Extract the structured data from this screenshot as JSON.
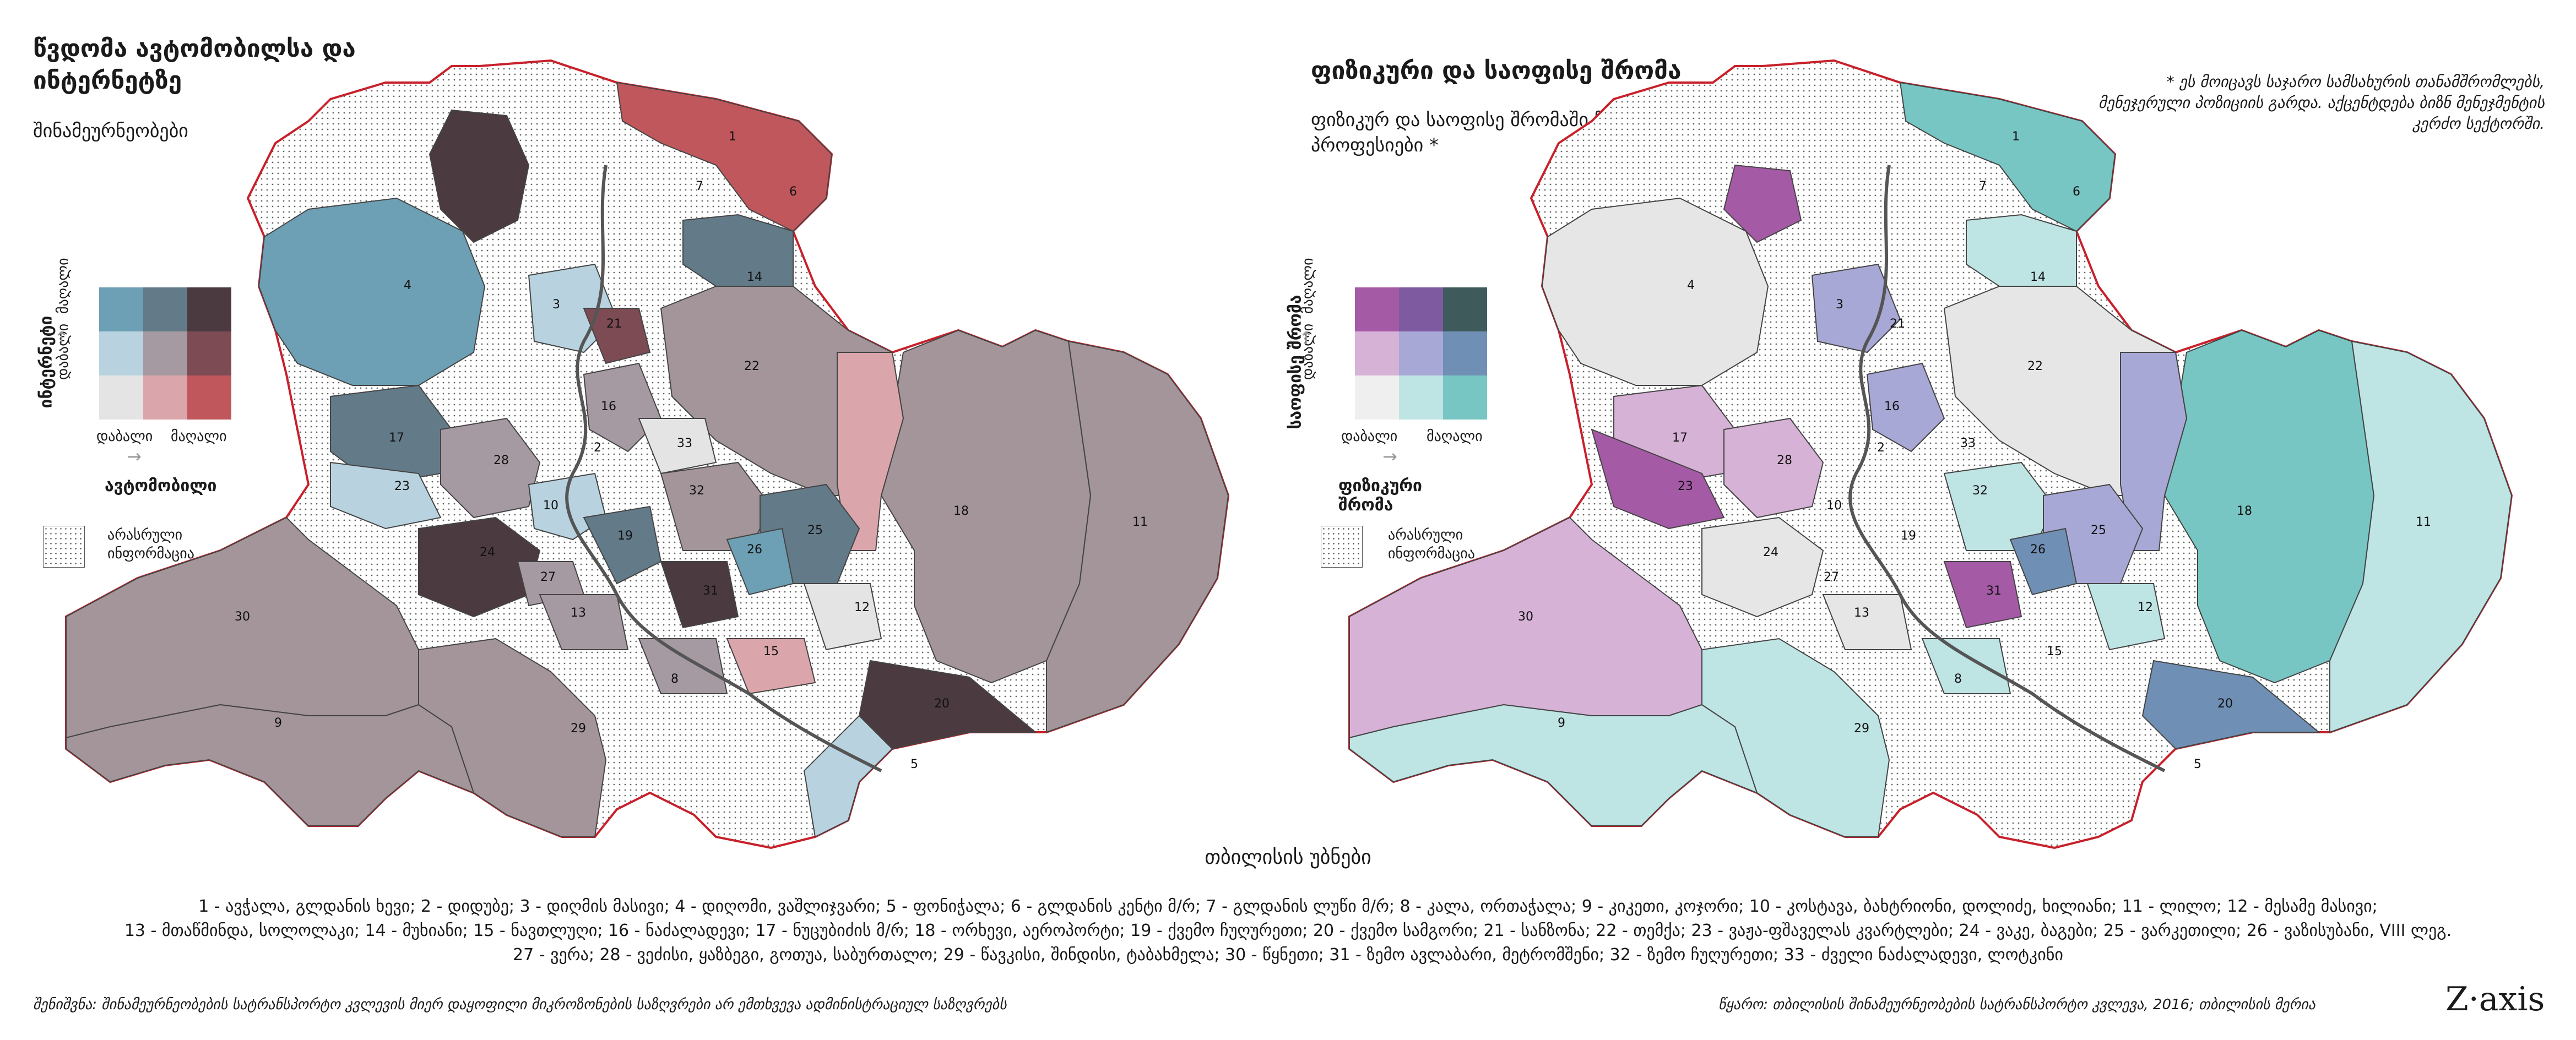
{
  "left_panel": {
    "title": "წვდომა ავტომობილსა და ინტერნეტზე",
    "subtitle": "შინამეურნეობები",
    "y_axis_title": "ინტერნეტი",
    "x_axis_title": "ავტომობილი",
    "x_low": "დაბალი",
    "x_high": "მაღალი",
    "y_low": "დაბალი",
    "y_high": "მაღალი",
    "no_info_label": "არასრული ინფორმაცია",
    "matrix_colors": [
      "#6d9fb5",
      "#637a89",
      "#4b3a40",
      "#b8d3df",
      "#a69aa2",
      "#7c4b54",
      "#e4e4e4",
      "#dba6ab",
      "#c0575c"
    ],
    "base_color": "#a39599"
  },
  "right_panel": {
    "title": "ფიზიკური და საოფისე შრომა",
    "subtitle": "ფიზიკურ და საოფისე შრომაში ჩართული პროფესიები *",
    "footnote": "* ეს მოიცავს საჯარო სამსახურის თანამშრომლებს, მენეჯერული პოზიციის გარდა. აქცენტდება ბიზნ მენეჯმენტის კერძო სექტორში.",
    "y_axis_title": "საოფისე შრომა",
    "x_axis_title": "ფიზიკური შრომა",
    "x_low": "დაბალი",
    "x_high": "მაღალი",
    "y_low": "დაბალი",
    "y_high": "მაღალი",
    "no_info_label": "არასრული ინფორმაცია",
    "matrix_colors": [
      "#a55aa6",
      "#7e5aa0",
      "#3f5a5a",
      "#d6b2d6",
      "#a8a8d6",
      "#6f8fb5",
      "#efefef",
      "#bfe4e4",
      "#78c6c3"
    ],
    "base_color": "#bfe4e4"
  },
  "map_title": "თბილისის უბნები",
  "district_numbers": [
    "1",
    "2",
    "3",
    "4",
    "5",
    "6",
    "7",
    "8",
    "9",
    "10",
    "11",
    "12",
    "13",
    "14",
    "15",
    "16",
    "17",
    "18",
    "19",
    "20",
    "21",
    "22",
    "23",
    "24",
    "25",
    "26",
    "27",
    "28",
    "29",
    "30",
    "31",
    "32",
    "33"
  ],
  "districts_legend": [
    "1 - ავჭალა, გლდანის ხევი; 2 - დიდუბე; 3 - დიღმის მასივი; 4 - დიღომი, ვაშლიჯვარი; 5 - ფონიჭალა; 6 - გლდანის კენტი მ/რ; 7 - გლდანის ლუწი მ/რ; 8 - კალა, ორთაჭალა; 9 - კიკეთი, კოჯორი; 10 - კოსტავა, ბახტრიონი, დოლიძე, ხილიანი; 11 - ლილო; 12 - მესამე მასივი;",
    "13 - მთაწმინდა, სოლოლაკი; 14 - მუხიანი; 15 - ნავთლუღი; 16 - ნაძალადევი; 17 - ნუცუბიძის მ/რ; 18 - ორხევი, აეროპორტი; 19 - ქვემო ჩუღურეთი; 20 - ქვემო სამგორი; 21 - სანზონა; 22 - თემქა; 23 - ვაჟა-ფშაველას კვარტლები; 24 - ვაკე, ბაგები; 25 - ვარკეთილი; 26 - ვაზისუბანი, VIII ლეგ.",
    "27 - ვერა; 28 - ვეძისი, ყაზბეგი, გოთუა, საბურთალო; 29 - წავკისი, შინდისი, ტაბახმელა; 30 - წყნეთი; 31 - ზემო ავლაბარი, მეტრომშენი; 32 - ზემო ჩუღურეთი; 33 - ძველი ნაძალადევი, ლოტკინი"
  ],
  "footer_note": "შენიშვნა: შინამეურნეობების სატრანსპორტო კვლევის მიერ დაყოფილი მიკროზონების საზღვრები არ ემთხვევა ადმინისტრაციულ საზღვრებს",
  "source": "წყარო: თბილისის შინამეურნეობების სატრანსპორტო კვლევა, 2016; თბილისის მერია",
  "logo": "Z·axis"
}
